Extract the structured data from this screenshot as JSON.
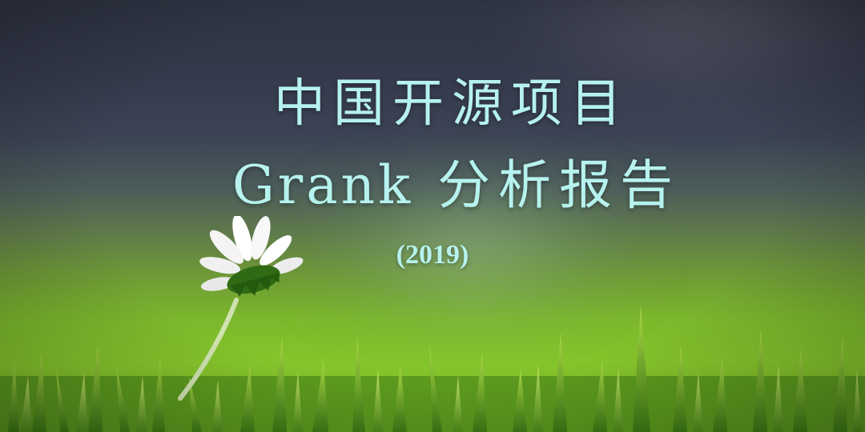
{
  "title": {
    "line1": "中国开源项目",
    "line2_latin": "Grank",
    "line2_cn": "分析报告"
  },
  "year": "(2019)",
  "colors": {
    "title_text": "#b6f2ee",
    "sky_dark": "#2f3443",
    "grass_green": "#86c52c"
  },
  "decor": {
    "flower": "white-daisy-icon",
    "foreground": "grass-blades"
  }
}
